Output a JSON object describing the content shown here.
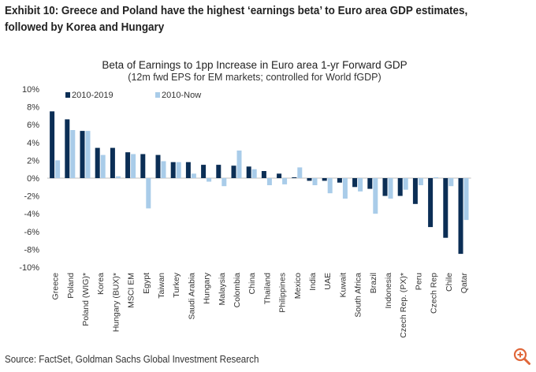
{
  "exhibit": {
    "title": "Exhibit 10: Greece and Poland have the highest ‘earnings beta’ to Euro area GDP estimates, followed by Korea and Hungary",
    "source": "Source: FactSet, Goldman Sachs Global Investment Research"
  },
  "colors": {
    "series1": "#0b2e55",
    "series2": "#a9cce9",
    "zoom": "#e0673a"
  },
  "icons": {
    "zoom": "zoom-in-icon"
  },
  "chart_data": {
    "type": "bar",
    "title": "Beta of Earnings to 1pp Increase in Euro area 1-yr Forward GDP",
    "subtitle": "(12m fwd EPS for EM markets; controlled  for World fGDP)",
    "xlabel": "",
    "ylabel": "",
    "ylim": [
      -10,
      10
    ],
    "yticks": [
      -10,
      -8,
      -6,
      -4,
      -2,
      0,
      2,
      4,
      6,
      8,
      10
    ],
    "ytick_labels": [
      "-10%",
      "-8%",
      "-6%",
      "-4%",
      "-2%",
      "0%",
      "2%",
      "4%",
      "6%",
      "8%",
      "10%"
    ],
    "grid": false,
    "legend_position": "top-left",
    "categories": [
      "Greece",
      "Poland",
      "Poland (WIG)*",
      "Korea",
      "Hungary (BUX)*",
      "MSCI EM",
      "Egypt",
      "Taiwan",
      "Turkey",
      "Saudi Arabia",
      "Hungary",
      "Malaysia",
      "Colombia",
      "China",
      "Thailand",
      "Philippines",
      "Mexico",
      "India",
      "UAE",
      "Kuwait",
      "South Africa",
      "Brazil",
      "Indonesia",
      "Czech Rep. (PX)*",
      "Peru",
      "Czech Rep",
      "Chile",
      "Qatar"
    ],
    "series": [
      {
        "name": "2010-2019",
        "values": [
          7.5,
          6.6,
          5.3,
          3.4,
          3.4,
          2.9,
          2.7,
          2.6,
          1.8,
          1.8,
          1.5,
          1.5,
          1.4,
          1.3,
          0.8,
          0.5,
          0.1,
          -0.3,
          -0.3,
          -0.5,
          -1.0,
          -1.2,
          -2.0,
          -2.0,
          -2.9,
          -5.5,
          -6.7,
          -8.5
        ]
      },
      {
        "name": "2010-Now",
        "values": [
          2.0,
          5.4,
          5.3,
          2.6,
          0.2,
          2.7,
          -3.4,
          1.9,
          1.8,
          0.5,
          -0.4,
          -0.9,
          3.1,
          1.0,
          -0.8,
          -0.7,
          1.2,
          -0.8,
          -1.7,
          -2.3,
          -1.5,
          -4.0,
          -2.3,
          -1.3,
          -0.8,
          0.1,
          -0.9,
          -4.7
        ]
      }
    ]
  }
}
